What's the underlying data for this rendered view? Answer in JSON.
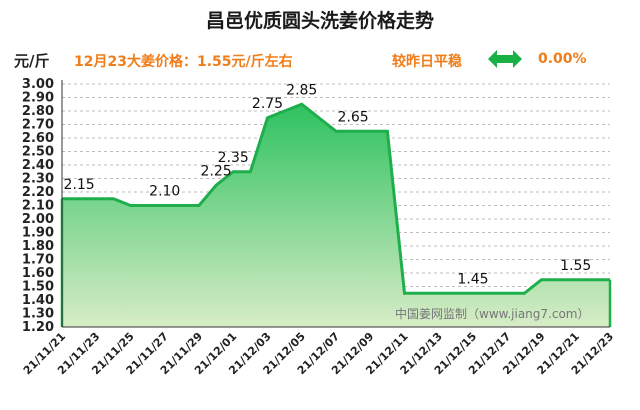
{
  "header": {
    "title": "昌邑优质圆头洗姜价格走势",
    "unit": "元/斤",
    "price_note": "12月23大姜价格：1.55元/斤左右",
    "compare_label": "较昨日平稳",
    "change_value": "0.00%"
  },
  "icons": {
    "change_indicator": "double-arrow-icon"
  },
  "colors": {
    "line": "#1fae4c",
    "accent": "#f07d19",
    "arrow": "#19b046"
  },
  "chart_data": {
    "type": "area",
    "x": [
      "21/11/21",
      "21/11/22",
      "21/11/23",
      "21/11/24",
      "21/11/25",
      "21/11/26",
      "21/11/27",
      "21/11/28",
      "21/11/29",
      "21/11/30",
      "21/12/01",
      "21/12/02",
      "21/12/03",
      "21/12/04",
      "21/12/05",
      "21/12/06",
      "21/12/07",
      "21/12/08",
      "21/12/09",
      "21/12/10",
      "21/12/11",
      "21/12/12",
      "21/12/13",
      "21/12/14",
      "21/12/15",
      "21/12/16",
      "21/12/17",
      "21/12/18",
      "21/12/19",
      "21/12/20",
      "21/12/21",
      "21/12/22",
      "21/12/23"
    ],
    "values": [
      2.15,
      2.15,
      2.15,
      2.15,
      2.1,
      2.1,
      2.1,
      2.1,
      2.1,
      2.25,
      2.35,
      2.35,
      2.75,
      2.8,
      2.85,
      2.75,
      2.65,
      2.65,
      2.65,
      2.65,
      1.45,
      1.45,
      1.45,
      1.45,
      1.45,
      1.45,
      1.45,
      1.45,
      1.55,
      1.55,
      1.55,
      1.55,
      1.55
    ],
    "x_ticks": [
      "21/11/21",
      "21/11/23",
      "21/11/25",
      "21/11/27",
      "21/11/29",
      "21/12/01",
      "21/12/03",
      "21/12/05",
      "21/12/07",
      "21/12/09",
      "21/12/11",
      "21/12/13",
      "21/12/15",
      "21/12/17",
      "21/12/19",
      "21/12/21",
      "21/12/23"
    ],
    "y_ticks": [
      "3.00",
      "2.90",
      "2.80",
      "2.70",
      "2.60",
      "2.50",
      "2.40",
      "2.30",
      "2.20",
      "2.10",
      "2.00",
      "1.90",
      "1.80",
      "1.70",
      "1.60",
      "1.50",
      "1.40",
      "1.30",
      "1.20"
    ],
    "ylim": [
      1.2,
      3.0
    ],
    "data_labels": [
      {
        "index": 1,
        "text": "2.15"
      },
      {
        "index": 6,
        "text": "2.10"
      },
      {
        "index": 9,
        "text": "2.25"
      },
      {
        "index": 10,
        "text": "2.35"
      },
      {
        "index": 12,
        "text": "2.75"
      },
      {
        "index": 14,
        "text": "2.85"
      },
      {
        "index": 17,
        "text": "2.65"
      },
      {
        "index": 24,
        "text": "1.45"
      },
      {
        "index": 30,
        "text": "1.55"
      }
    ],
    "watermark": "中国姜网监制（www.jiang7.com）",
    "grid": true,
    "title": "昌邑优质圆头洗姜价格走势",
    "ylabel": "元/斤"
  }
}
